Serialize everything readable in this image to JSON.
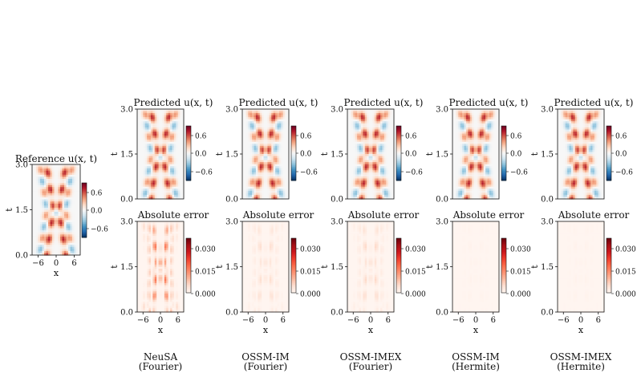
{
  "chart_data": [
    {
      "type": "heatmap",
      "id": "reference",
      "title": "Reference u(x, t)",
      "xlabel": "x",
      "ylabel": "t",
      "xlim": [
        -8,
        8
      ],
      "ylim": [
        0,
        3
      ],
      "x_ticks": [
        -6,
        0,
        6
      ],
      "y_ticks": [
        "0.0",
        "1.5",
        "3.0"
      ],
      "colorbar": {
        "ticks": [
          "0.6",
          "0.0",
          "−0.6"
        ],
        "range": [
          -0.8,
          0.8
        ],
        "colormap": "RdBu_r"
      },
      "field": "solution"
    }
  ],
  "methods": [
    {
      "caption": [
        "NeuSA",
        "(Fourier)"
      ],
      "pred_title": "Predicted u(x, t)",
      "err_title": "Absolute error",
      "error_level": 1.0,
      "pred_colorbar_ticks": [
        "0.6",
        "0.0",
        "−0.6"
      ],
      "err_colorbar_ticks": [
        "0.030",
        "0.015",
        "0.000"
      ]
    },
    {
      "caption": [
        "OSSM-IM",
        "(Fourier)"
      ],
      "pred_title": "Predicted u(x, t)",
      "err_title": "Absolute error",
      "error_level": 0.28,
      "pred_colorbar_ticks": [
        "0.6",
        "0.0",
        "−0.6"
      ],
      "err_colorbar_ticks": [
        "0.030",
        "0.015",
        "0.000"
      ]
    },
    {
      "caption": [
        "OSSM-IMEX",
        "(Fourier)"
      ],
      "pred_title": "Predicted u(x, t)",
      "err_title": "Absolute error",
      "error_level": 0.32,
      "pred_colorbar_ticks": [
        "0.6",
        "0.0",
        "−0.6"
      ],
      "err_colorbar_ticks": [
        "0.030",
        "0.015",
        "0.000"
      ]
    },
    {
      "caption": [
        "OSSM-IM",
        "(Hermite)"
      ],
      "pred_title": "Predicted u(x, t)",
      "err_title": "Absolute error",
      "error_level": 0.04,
      "pred_colorbar_ticks": [
        "0.6",
        "0.0",
        "−0.6"
      ],
      "err_colorbar_ticks": [
        "0.030",
        "0.015",
        "0.000"
      ]
    },
    {
      "caption": [
        "OSSM-IMEX",
        "(Hermite)"
      ],
      "pred_title": "Predicted u(x, t)",
      "err_title": "Absolute error",
      "error_level": 0.04,
      "pred_colorbar_ticks": [
        "0.6",
        "0.0",
        "−0.6"
      ],
      "err_colorbar_ticks": [
        "0.030",
        "0.015",
        "0.000"
      ]
    }
  ],
  "axes": {
    "xlabel": "x",
    "ylabel": "t",
    "x_ticks": [
      -6,
      0,
      6
    ],
    "y_ticks": [
      "0.0",
      "1.5",
      "3.0"
    ]
  }
}
